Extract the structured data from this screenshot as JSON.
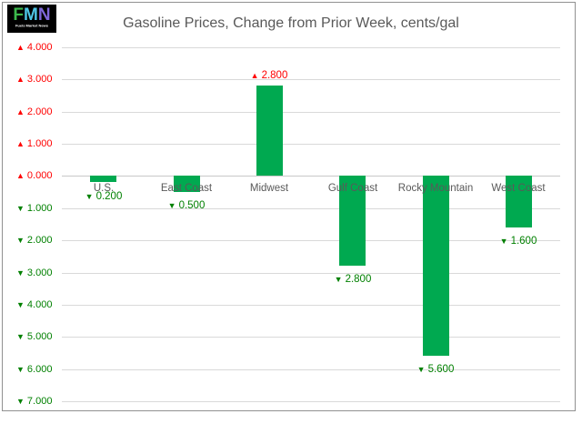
{
  "logo": {
    "letters": [
      {
        "char": "F",
        "color": "#3CB94C"
      },
      {
        "char": "M",
        "color": "#4EC6E6"
      },
      {
        "char": "N",
        "color": "#7F66D9"
      }
    ],
    "subtext": "Fuels Market News",
    "background": "#000000"
  },
  "chart_data": {
    "type": "bar",
    "title": "Gasoline Prices, Change from Prior Week, cents/gal",
    "categories": [
      "U.S.",
      "East Coast",
      "Midwest",
      "Gulf Coast",
      "Rocky Mountain",
      "West Coast"
    ],
    "values": [
      -0.2,
      -0.5,
      2.8,
      -2.8,
      -5.6,
      -1.6
    ],
    "data_labels": [
      "▼ 0.200",
      "▼ 0.500",
      "▲ 2.800",
      "▼ 2.800",
      "▼ 5.600",
      "▼ 1.600"
    ],
    "y_axis": {
      "min": -7,
      "max": 4,
      "step": 1,
      "tick_labels": [
        "▲ 4.000",
        "▲ 3.000",
        "▲ 2.000",
        "▲ 1.000",
        "▲ 0.000",
        "▼ 1.000",
        "▼ 2.000",
        "▼ 3.000",
        "▼ 4.000",
        "▼ 5.000",
        "▼ 6.000",
        "▼ 7.000"
      ]
    },
    "grid": true,
    "legend": "none",
    "colors": {
      "bar": "#00A950",
      "increase": "#FF0000",
      "decrease": "#008000",
      "gridline": "#D9D9D9",
      "axis_line": "#C9C9C9",
      "title_text": "#595959",
      "category_text": "#595959",
      "frame_border": "#919191"
    }
  }
}
